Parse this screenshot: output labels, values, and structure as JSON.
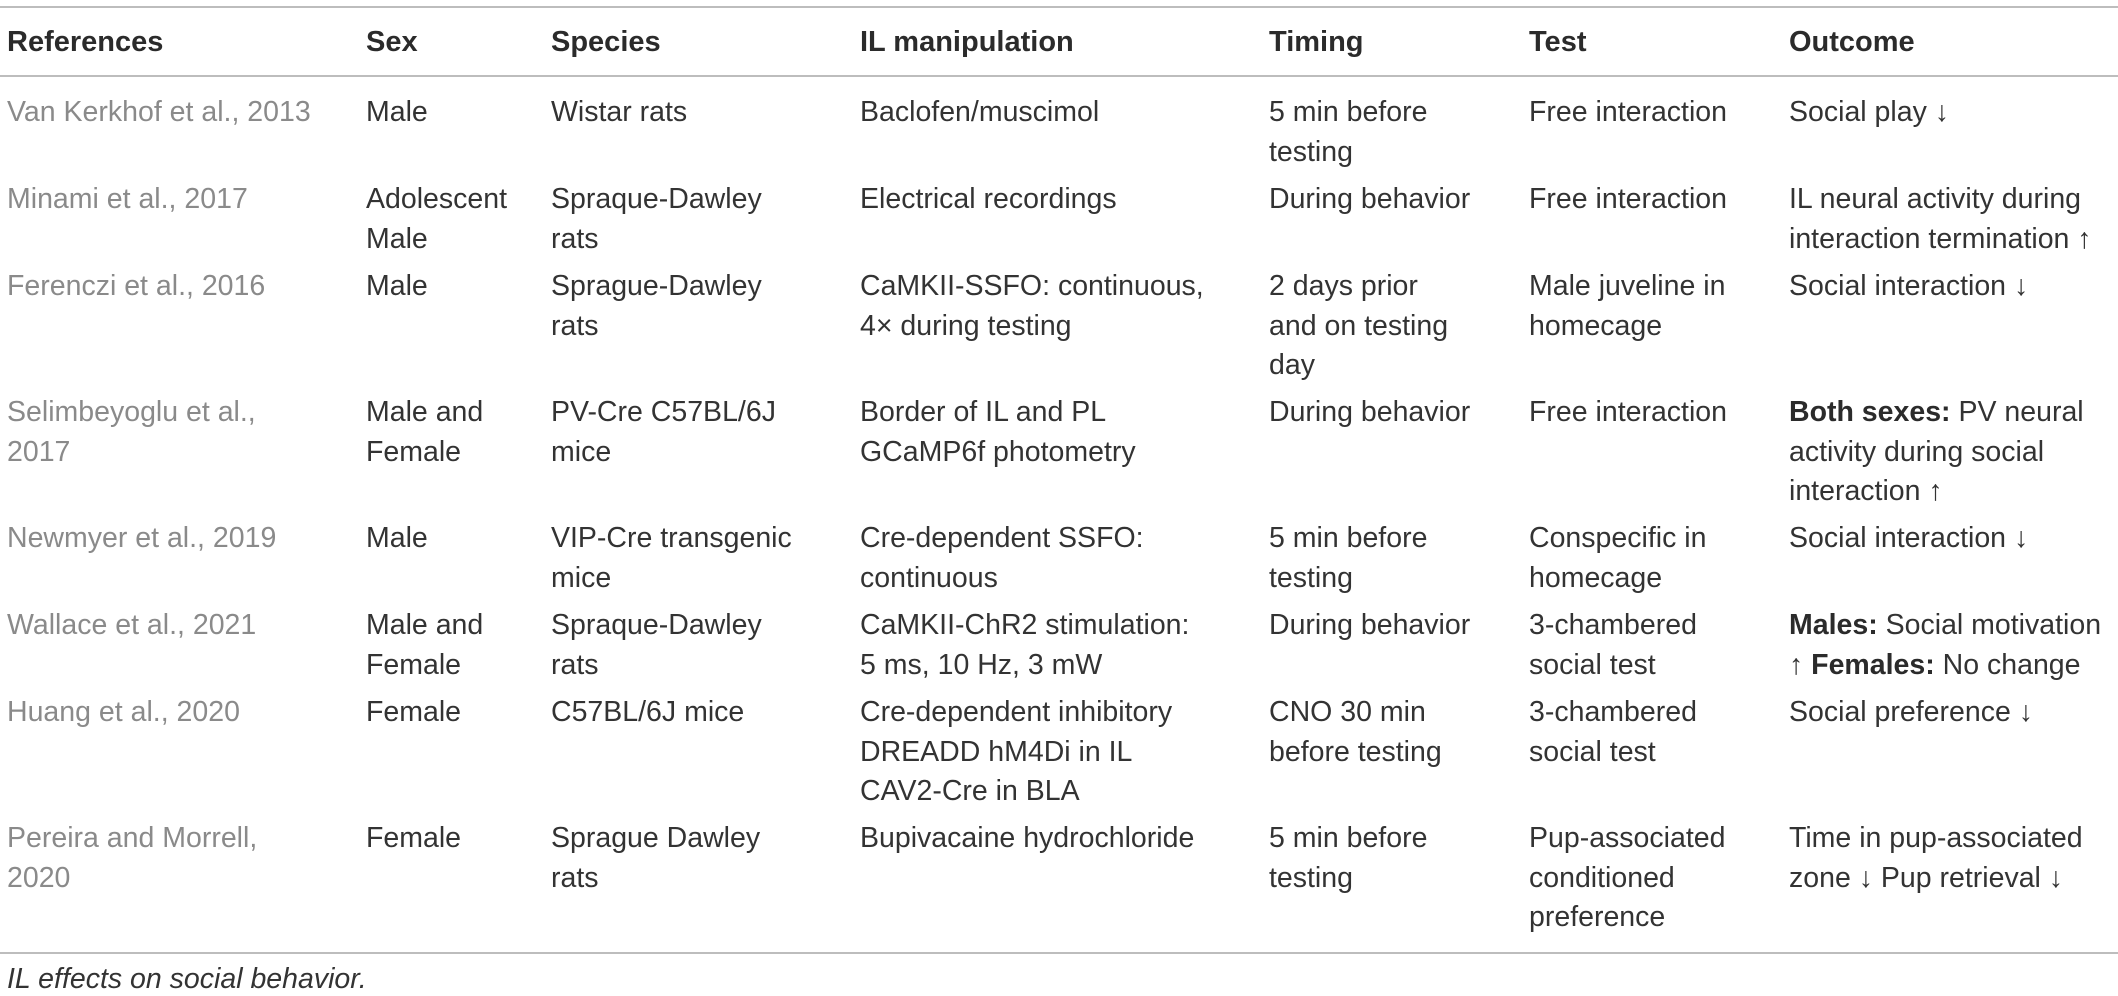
{
  "table": {
    "headers": [
      "References",
      "Sex",
      "Species",
      "IL manipulation",
      "Timing",
      "Test",
      "Outcome"
    ],
    "rows": [
      {
        "reference": "Van Kerkhof et al., 2013",
        "sex": "Male",
        "species": "Wistar rats",
        "manipulation": "Baclofen/muscimol",
        "timing": "5 min before\ntesting",
        "test": "Free interaction",
        "outcome": "Social play ↓"
      },
      {
        "reference": "Minami et al., 2017",
        "sex": "Adolescent\nMale",
        "species": "Spraque-Dawley\nrats",
        "manipulation": "Electrical recordings",
        "timing": "During behavior",
        "test": "Free interaction",
        "outcome": "IL neural activity during\ninteraction termination ↑"
      },
      {
        "reference": "Ferenczi et al., 2016",
        "sex": "Male",
        "species": "Sprague-Dawley\nrats",
        "manipulation": "CaMKII-SSFO: continuous,\n4× during testing",
        "timing": "2 days prior\nand on testing\nday",
        "test": "Male juveline in\nhomecage",
        "outcome": "Social interaction ↓"
      },
      {
        "reference": "Selimbeyoglu et al.,\n2017",
        "sex": "Male and\nFemale",
        "species": "PV-Cre C57BL/6J\nmice",
        "manipulation": "Border of IL and PL\nGCaMP6f photometry",
        "timing": "During behavior",
        "test": "Free interaction",
        "outcome_bold_1": "Both sexes:",
        "outcome_text_1": " PV neural\nactivity during social\ninteraction ↑"
      },
      {
        "reference": "Newmyer et al., 2019",
        "sex": "Male",
        "species": "VIP-Cre transgenic\nmice",
        "manipulation": "Cre-dependent SSFO:\ncontinuous",
        "timing": "5 min before\ntesting",
        "test": "Conspecific in\nhomecage",
        "outcome": "Social interaction ↓"
      },
      {
        "reference": "Wallace et al., 2021",
        "sex": "Male and\nFemale",
        "species": "Spraque-Dawley\nrats",
        "manipulation": "CaMKII-ChR2 stimulation:\n5 ms, 10 Hz, 3 mW",
        "timing": "During behavior",
        "test": "3-chambered\nsocial test",
        "outcome_bold_1": "Males:",
        "outcome_text_1": " Social motivation\n↑ ",
        "outcome_bold_2": "Females:",
        "outcome_text_2": " No change"
      },
      {
        "reference": "Huang et al., 2020",
        "sex": "Female",
        "species": "C57BL/6J mice",
        "manipulation": "Cre-dependent inhibitory\nDREADD hM4Di in IL\nCAV2-Cre in BLA",
        "timing": "CNO 30 min\nbefore testing",
        "test": "3-chambered\nsocial test",
        "outcome": "Social preference ↓"
      },
      {
        "reference": "Pereira and Morrell,\n2020",
        "sex": "Female",
        "species": "Sprague Dawley\nrats",
        "manipulation": "Bupivacaine hydrochloride",
        "timing": "5 min before\ntesting",
        "test": "Pup-associated\nconditioned\npreference",
        "outcome": "Time in pup-associated\nzone ↓ Pup retrieval ↓"
      }
    ]
  },
  "caption": "IL effects on social behavior."
}
